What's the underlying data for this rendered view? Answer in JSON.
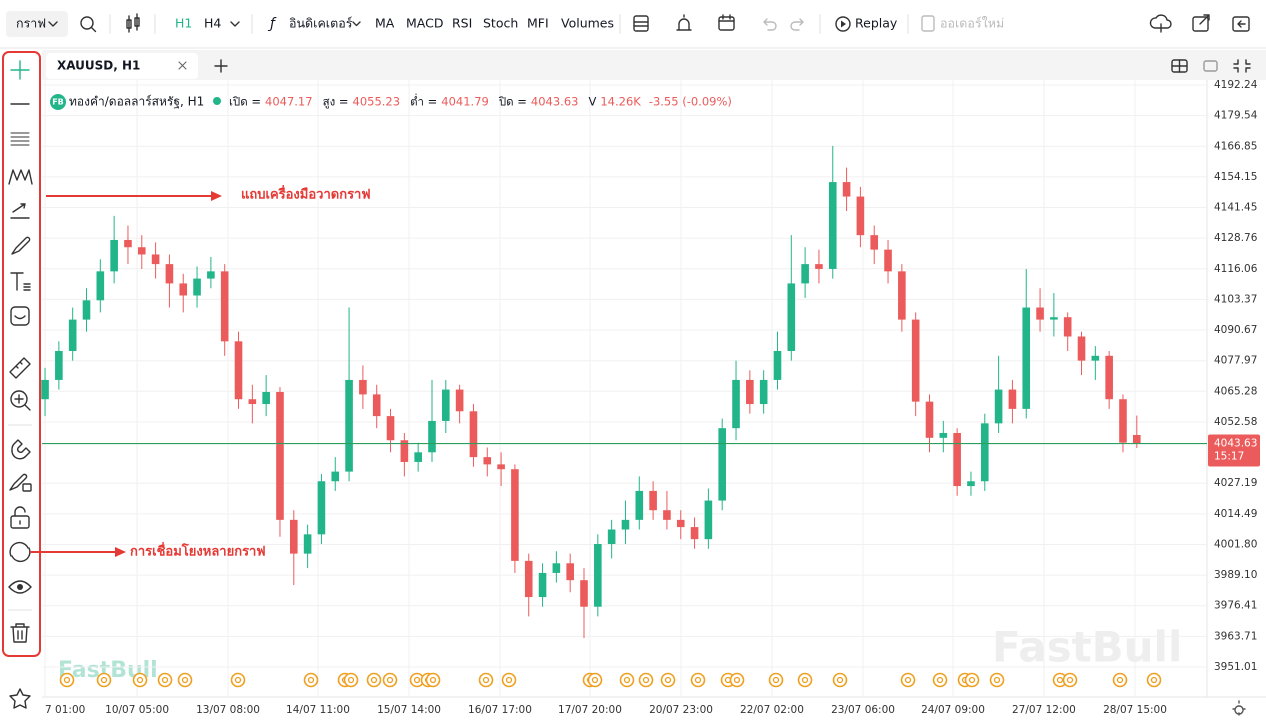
{
  "toolbar": {
    "chart": "กราฟ",
    "h1": "H1",
    "h4": "H4",
    "indicators": "อินดิเคเตอร์",
    "ma": "MA",
    "macd": "MACD",
    "rsi": "RSI",
    "stoch": "Stoch",
    "mfi": "MFI",
    "volumes": "Volumes",
    "replay": "Replay",
    "new_order": "ออเดอร์ใหม่"
  },
  "tab": {
    "title": "XAUUSD, H1"
  },
  "annotations": [
    "แถบเครื่องมือวาดกราฟ",
    "การเชื่อมโยงหลายกราฟ"
  ],
  "chart_data": {
    "type": "candlestick",
    "badge": "FB",
    "title": "ทองคำ/ดอลลาร์สหรัฐ, H1",
    "ohlc_labels": {
      "open": "เปิด =",
      "high": "สูง =",
      "low": "ต่ำ =",
      "close": "ปิด ="
    },
    "volume_label": "V",
    "volume": "14.26K",
    "change": "-3.55 (-0.09%)",
    "last_time": "15:17",
    "watermark": "FastBull",
    "up_color": "#22b58a",
    "down_color": "#ec5b5b",
    "last_price_color": "#2e9e5f",
    "open": [
      4062,
      4070,
      4082,
      4095,
      4103,
      4115,
      4128,
      4125,
      4122,
      4118,
      4110,
      4105,
      4112,
      4115,
      4086,
      4062,
      4060,
      4065,
      4012,
      3998,
      4006,
      4028,
      4032,
      4070,
      4064,
      4055,
      4045,
      4036,
      4040,
      4053,
      4066,
      4057,
      4038,
      4035,
      4033,
      3995,
      3980,
      3990,
      3994,
      3987,
      3976,
      4002,
      4008,
      4012,
      4024,
      4016,
      4012,
      4009,
      4004,
      4020,
      4050,
      4070,
      4060,
      4070,
      4082,
      4110,
      4118,
      4116,
      4152,
      4146,
      4130,
      4124,
      4115,
      4095,
      4061,
      4046,
      4048,
      4026,
      4028,
      4052,
      4066,
      4058,
      4100,
      4095,
      4096,
      4088,
      4078,
      4080,
      4062,
      4047.17
    ],
    "high": [
      4075,
      4086,
      4100,
      4108,
      4120,
      4138,
      4134,
      4130,
      4127,
      4122,
      4114,
      4117,
      4121,
      4118,
      4090,
      4068,
      4072,
      4067,
      4016,
      4010,
      4031,
      4038,
      4100,
      4076,
      4068,
      4058,
      4048,
      4044,
      4070,
      4070,
      4068,
      4060,
      4042,
      4040,
      4035,
      3998,
      3994,
      3999,
      3998,
      3992,
      4006,
      4012,
      4020,
      4030,
      4028,
      4024,
      4016,
      4013,
      4025,
      4054,
      4078,
      4074,
      4074,
      4090,
      4130,
      4125,
      4124,
      4167,
      4158,
      4150,
      4134,
      4128,
      4118,
      4098,
      4064,
      4053,
      4050,
      4032,
      4056,
      4080,
      4070,
      4116,
      4108,
      4106,
      4098,
      4090,
      4084,
      4082,
      4064,
      4055.23
    ],
    "low": [
      4055,
      4066,
      4078,
      4090,
      4098,
      4110,
      4118,
      4116,
      4112,
      4100,
      4098,
      4100,
      4108,
      4080,
      4058,
      4052,
      4055,
      4005,
      3985,
      3992,
      4002,
      4024,
      4028,
      4058,
      4050,
      4040,
      4030,
      4032,
      4036,
      4048,
      4052,
      4034,
      4030,
      4026,
      3990,
      3972,
      3976,
      3986,
      3982,
      3963,
      3972,
      3996,
      4002,
      4008,
      4012,
      4008,
      4004,
      4000,
      4000,
      4016,
      4045,
      4056,
      4056,
      4066,
      4078,
      4104,
      4110,
      4112,
      4140,
      4125,
      4118,
      4110,
      4090,
      4055,
      4040,
      4040,
      4022,
      4022,
      4024,
      4048,
      4052,
      4054,
      4090,
      4088,
      4082,
      4072,
      4070,
      4058,
      4040,
      4041.79
    ],
    "close": [
      4070,
      4082,
      4095,
      4103,
      4115,
      4128,
      4125,
      4122,
      4118,
      4110,
      4105,
      4112,
      4115,
      4086,
      4062,
      4060,
      4065,
      4012,
      3998,
      4006,
      4028,
      4032,
      4070,
      4064,
      4055,
      4045,
      4036,
      4040,
      4053,
      4066,
      4057,
      4038,
      4035,
      4033,
      3995,
      3980,
      3990,
      3994,
      3987,
      3976,
      4002,
      4008,
      4012,
      4024,
      4016,
      4012,
      4009,
      4004,
      4020,
      4050,
      4070,
      4060,
      4070,
      4082,
      4110,
      4118,
      4116,
      4152,
      4146,
      4130,
      4124,
      4115,
      4095,
      4061,
      4046,
      4048,
      4026,
      4028,
      4052,
      4066,
      4058,
      4100,
      4095,
      4096,
      4088,
      4078,
      4080,
      4062,
      4044,
      4043.63
    ],
    "xlim": [
      -0.22,
      84.08
    ],
    "xticks": [
      {
        "value": 0,
        "label": "7 01:00"
      },
      {
        "value": 6.66,
        "label": "10/07 05:00"
      },
      {
        "value": 13.24,
        "label": "13/07 08:00"
      },
      {
        "value": 19.75,
        "label": "14/07 11:00"
      },
      {
        "value": 26.34,
        "label": "15/07 14:00"
      },
      {
        "value": 32.92,
        "label": "16/07 17:00"
      },
      {
        "value": 39.43,
        "label": "17/07 20:00"
      },
      {
        "value": 46.02,
        "label": "20/07 23:00"
      },
      {
        "value": 52.6,
        "label": "22/07 02:00"
      },
      {
        "value": 59.19,
        "label": "23/07 06:00"
      },
      {
        "value": 65.7,
        "label": "24/07 09:00"
      },
      {
        "value": 72.28,
        "label": "27/07 12:00"
      },
      {
        "value": 78.87,
        "label": "28/07 15:00"
      }
    ],
    "ylim": [
      3938.58,
      4194.31
    ],
    "yticks": [
      4192.24,
      4179.54,
      4166.85,
      4154.15,
      4141.45,
      4128.76,
      4116.06,
      4103.37,
      4090.67,
      4077.97,
      4065.28,
      4052.58,
      4027.19,
      4014.49,
      {
        "value": 4001.8,
        "label": "4001.80"
      },
      {
        "value": 3989.1,
        "label": "3989.10"
      },
      3976.41,
      3963.71,
      3951.01
    ],
    "grid": true
  }
}
